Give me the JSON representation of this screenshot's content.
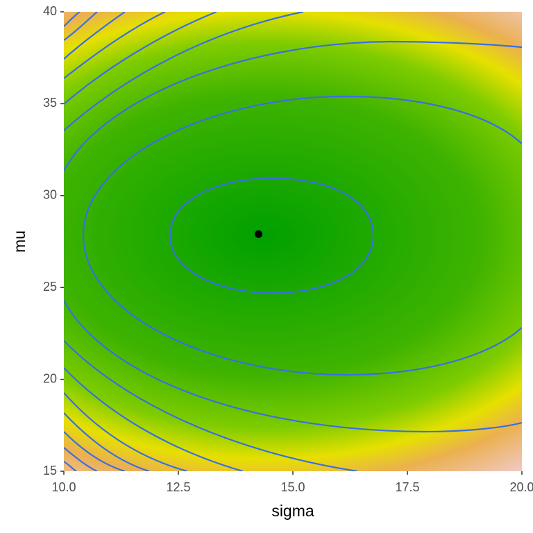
{
  "chart_data": {
    "type": "scatter",
    "x_label": "sigma",
    "y_label": "mu",
    "x": [
      14.25
    ],
    "values": [
      27.9
    ],
    "color": "#000000",
    "xlim": [
      10,
      20
    ],
    "ylim": [
      15,
      40
    ],
    "xticks": [
      {
        "value": 10,
        "label": "10.0"
      },
      {
        "value": 12.5,
        "label": "12.5"
      },
      {
        "value": 15,
        "label": "15.0"
      },
      {
        "value": 17.5,
        "label": "17.5"
      },
      {
        "value": 20,
        "label": "20.0"
      }
    ],
    "yticks": [
      15,
      20,
      25,
      30,
      35,
      40
    ]
  }
}
